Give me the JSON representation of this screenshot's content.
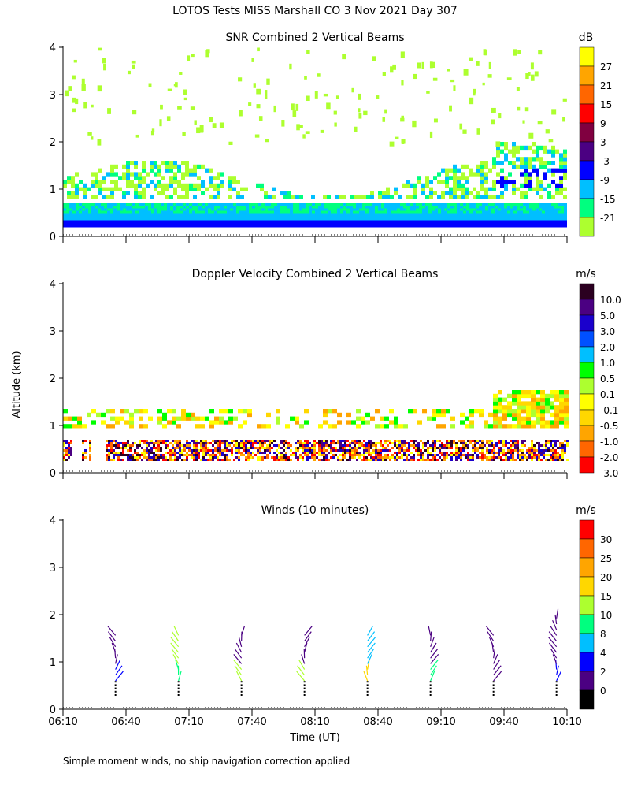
{
  "figure": {
    "title": "LOTOS Tests MISS Marshall CO    3 Nov 2021 Day 307",
    "ylabel": "Altitude (km)",
    "xlabel": "Time (UT)",
    "footnote": "Simple moment winds, no ship navigation correction applied"
  },
  "chart_data": [
    {
      "type": "heatmap",
      "title": "SNR Combined 2 Vertical Beams",
      "units": "dB",
      "ylim": [
        0,
        4
      ],
      "yticks": [
        0,
        1,
        2,
        3,
        4
      ],
      "xlim_hours": [
        6.1667,
        10.1667
      ],
      "colorbar": {
        "labels": [
          "27",
          "21",
          "15",
          "9",
          "3",
          "-3",
          "-9",
          "-15",
          "-21"
        ],
        "colors": [
          "#ffff00",
          "#ffa500",
          "#ff6600",
          "#ff0000",
          "#800040",
          "#4b0082",
          "#0000ff",
          "#00bfff",
          "#00ff7f",
          "#adff2f"
        ]
      },
      "layers": [
        {
          "name": "dense-low-layer",
          "alt_min": 0.2,
          "alt_max": 0.7
        },
        {
          "name": "broken-layer",
          "alt_min": 0.9,
          "alt_max": 2.0
        },
        {
          "name": "sparse-upper",
          "alt_min": 2.0,
          "alt_max": 4.0
        }
      ]
    },
    {
      "type": "heatmap",
      "title": "Doppler Velocity Combined 2 Vertical Beams",
      "units": "m/s",
      "ylim": [
        0,
        4
      ],
      "yticks": [
        0,
        1,
        2,
        3,
        4
      ],
      "xlim_hours": [
        6.1667,
        10.1667
      ],
      "colorbar": {
        "labels": [
          "10.0",
          "5.0",
          "3.0",
          "2.0",
          "1.0",
          "0.5",
          "0.1",
          "-0.1",
          "-0.5",
          "-1.0",
          "-2.0",
          "-3.0"
        ],
        "colors": [
          "#2b0020",
          "#4b0082",
          "#1a00cc",
          "#0050ff",
          "#00bfff",
          "#00ff00",
          "#adff2f",
          "#ffff00",
          "#ffd700",
          "#ffa500",
          "#ff6600",
          "#ff0000"
        ]
      }
    },
    {
      "type": "wind-barbs",
      "title": "Winds (10 minutes)",
      "units": "m/s",
      "ylim": [
        0,
        4
      ],
      "yticks": [
        0,
        1,
        2,
        3,
        4
      ],
      "xlim_hours": [
        6.1667,
        10.1667
      ],
      "xticks": [
        "06:10",
        "06:40",
        "07:10",
        "07:40",
        "08:10",
        "08:40",
        "09:10",
        "09:40",
        "10:10"
      ],
      "colorbar": {
        "labels": [
          "30",
          "25",
          "20",
          "15",
          "10",
          "8",
          "4",
          "2",
          "0"
        ],
        "colors": [
          "#ff0000",
          "#ff6600",
          "#ffa500",
          "#ffd700",
          "#adff2f",
          "#00ff7f",
          "#00bfff",
          "#0000ff",
          "#4b0082",
          "#000000"
        ]
      },
      "profiles": [
        {
          "time": "06:35",
          "hours": 6.5833
        },
        {
          "time": "07:05",
          "hours": 7.0833
        },
        {
          "time": "07:35",
          "hours": 7.5833
        },
        {
          "time": "08:05",
          "hours": 8.0833
        },
        {
          "time": "08:35",
          "hours": 8.5833
        },
        {
          "time": "09:05",
          "hours": 9.0833
        },
        {
          "time": "09:35",
          "hours": 9.5833
        },
        {
          "time": "10:05",
          "hours": 10.0833
        }
      ]
    }
  ]
}
